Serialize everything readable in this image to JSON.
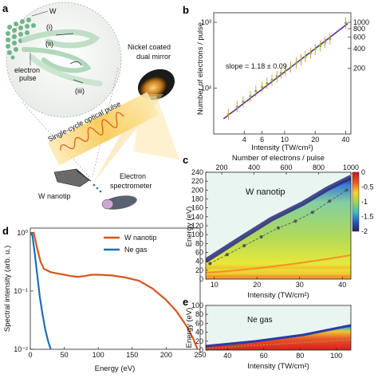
{
  "panel_labels": {
    "a": "a",
    "b": "b",
    "c": "c",
    "d": "d",
    "e": "e"
  },
  "panel_a": {
    "w_label": "W",
    "mode_i": "(i)",
    "mode_ii": "(ii)",
    "mode_iii": "(iii)",
    "electron_pulse": [
      "electron",
      "pulse"
    ],
    "mirror": [
      "Nickel coated",
      "dual mirror"
    ],
    "optical_pulse": "Single-cycle optical pulse",
    "nanotip": "W nanotip",
    "spectrometer": [
      "Electron",
      "spectrometer"
    ]
  },
  "chart_data": [
    {
      "panel": "b",
      "type": "scatter",
      "xlabel": "Intensity (TW/cm²)",
      "ylabel": "Number of electrons / pulse",
      "x_scale": "log",
      "y_scale": "log",
      "xlim": [
        2,
        45
      ],
      "ylim": [
        20,
        1400
      ],
      "x_ticks": [
        "4",
        "6",
        "10",
        "20",
        "40"
      ],
      "y_ticks_left": [
        "10¹",
        "10²",
        "10³"
      ],
      "y_ticks_right": [
        "1000",
        "800",
        "600",
        "400",
        "200"
      ],
      "annotation": "slope = 1.18 ± 0.09",
      "fit": {
        "slope": 1.18,
        "x": [
          2.5,
          42
        ],
        "y": [
          34,
          960
        ]
      },
      "series": [
        {
          "type": "scatter",
          "color": "#7cbf3a",
          "x": [
            2.8,
            3.4,
            3.9,
            4.6,
            5.2,
            6.0,
            6.7,
            7.5,
            8.4,
            9.2,
            10.2,
            11.5,
            13,
            14.5,
            16,
            18,
            20,
            22.5,
            25,
            28,
            40
          ],
          "y": [
            40,
            52,
            62,
            75,
            90,
            103,
            118,
            132,
            150,
            168,
            185,
            210,
            240,
            270,
            300,
            340,
            390,
            440,
            500,
            560,
            980
          ]
        }
      ]
    },
    {
      "panel": "c",
      "type": "heatmap",
      "title": "W nanotip",
      "xlabel": "Intensity (TW/cm²)",
      "ylabel": "Energy (eV)",
      "top_xlabel": "Number of electrons / pulse",
      "xlim": [
        8,
        42
      ],
      "ylim": [
        0,
        240
      ],
      "x_ticks": [
        "10",
        "20",
        "30",
        "40"
      ],
      "y_ticks": [
        "0",
        "20",
        "40",
        "60",
        "80",
        "100",
        "120",
        "140",
        "160",
        "180",
        "200",
        "220",
        "240"
      ],
      "top_ticks": [
        "200",
        "400",
        "600",
        "800",
        "1000"
      ],
      "colorbar_ticks": [
        "0",
        "-0.5",
        "-1",
        "-1.5",
        "-2"
      ],
      "cutoff_points": {
        "x": [
          9,
          13,
          17,
          21,
          25,
          29,
          33,
          37,
          41
        ],
        "y": [
          35,
          55,
          75,
          95,
          115,
          130,
          150,
          175,
          200
        ]
      }
    },
    {
      "panel": "d",
      "type": "line",
      "xlabel": "Energy (eV)",
      "ylabel": "Spectral intensity (arb. u.)",
      "y_scale": "log",
      "xlim": [
        0,
        250
      ],
      "ylim": [
        0.01,
        1.2
      ],
      "x_ticks": [
        "0",
        "50",
        "100",
        "150",
        "200",
        "250"
      ],
      "y_ticks": [
        "10⁰",
        "10⁻¹",
        "10⁻²"
      ],
      "series": [
        {
          "name": "W nanotip",
          "color": "#d9541e",
          "x": [
            0,
            5,
            10,
            15,
            20,
            30,
            40,
            50,
            60,
            70,
            80,
            90,
            100,
            120,
            140,
            160,
            180,
            200,
            215,
            230,
            240,
            246
          ],
          "y": [
            0.95,
            1.0,
            0.55,
            0.32,
            0.24,
            0.21,
            0.2,
            0.19,
            0.18,
            0.175,
            0.18,
            0.19,
            0.19,
            0.185,
            0.17,
            0.15,
            0.11,
            0.07,
            0.045,
            0.025,
            0.015,
            0.01
          ]
        },
        {
          "name": "Ne gas",
          "color": "#1f6fb8",
          "x": [
            0,
            3,
            6,
            10,
            14,
            18,
            22,
            26,
            30
          ],
          "y": [
            1.0,
            0.9,
            0.5,
            0.2,
            0.08,
            0.04,
            0.022,
            0.014,
            0.01
          ]
        }
      ]
    },
    {
      "panel": "e",
      "type": "heatmap",
      "title": "Ne gas",
      "xlabel": "Intensity (TW/cm²)",
      "ylabel": "Energy (eV)",
      "xlim": [
        28,
        108
      ],
      "ylim": [
        0,
        100
      ],
      "x_ticks": [
        "40",
        "60",
        "80",
        "100"
      ],
      "y_ticks": [
        "0",
        "20",
        "40",
        "60",
        "80",
        "100"
      ]
    }
  ]
}
